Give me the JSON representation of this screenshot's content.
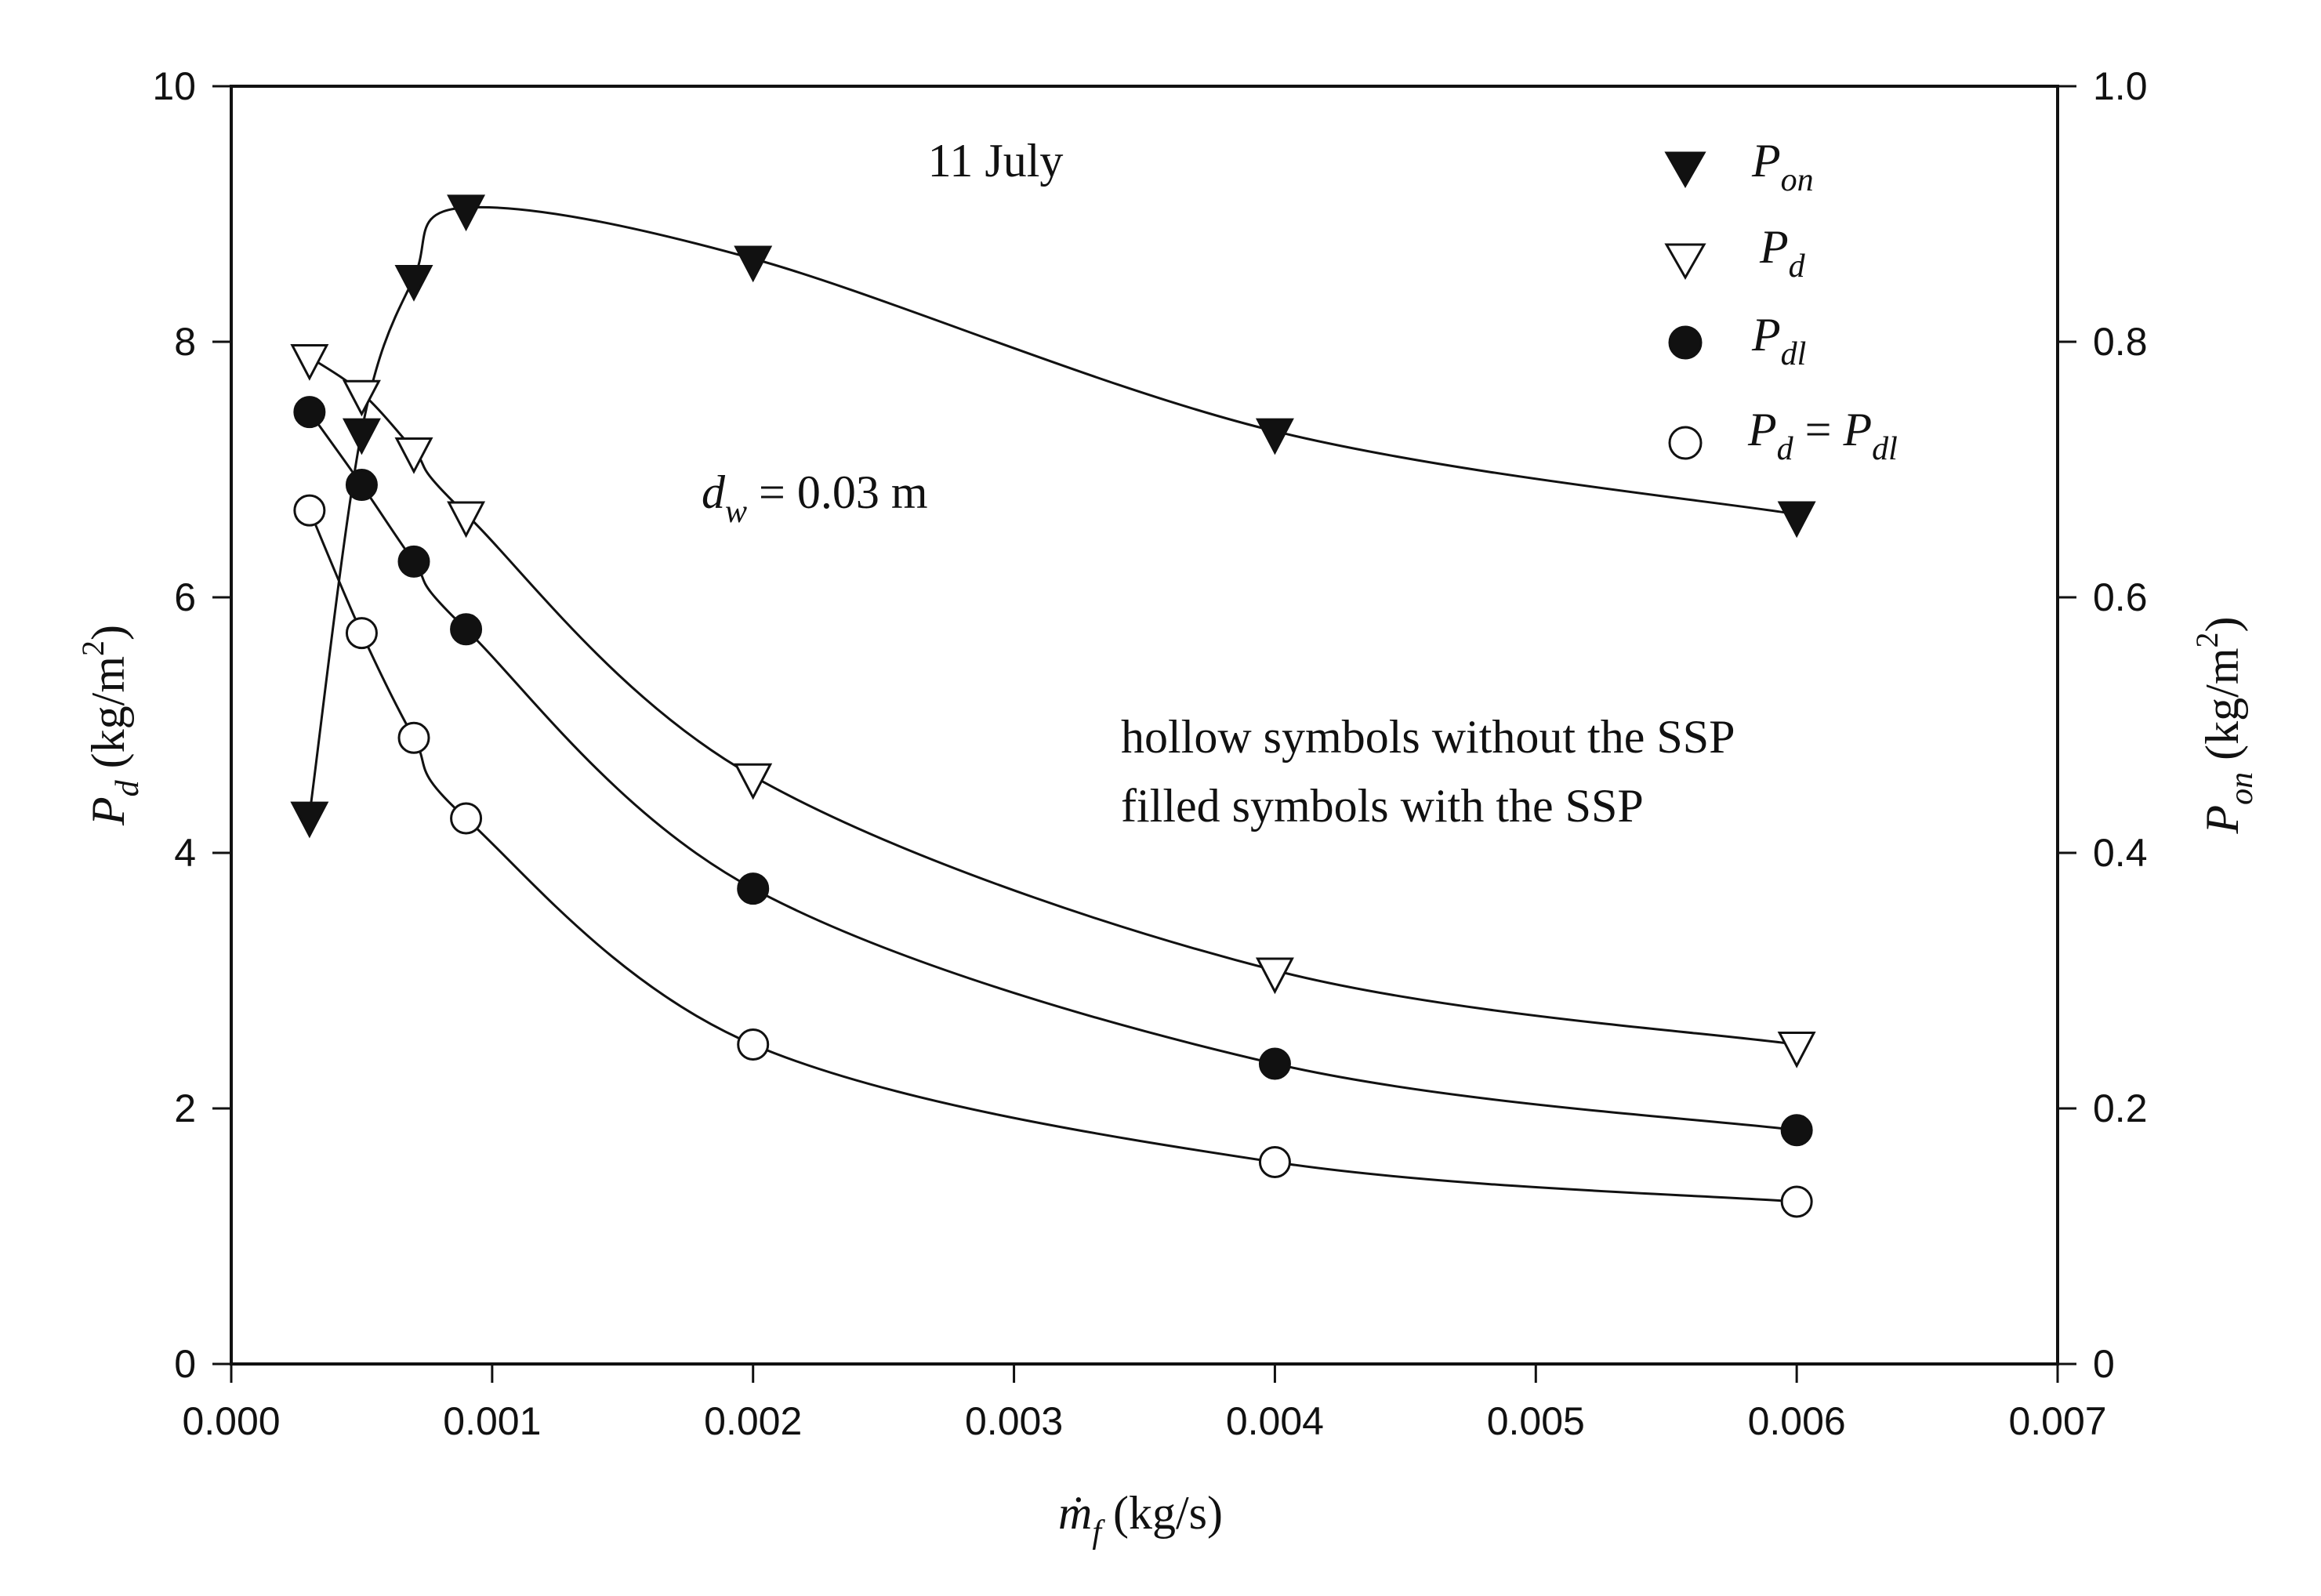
{
  "chart_data": {
    "type": "scatter",
    "annotations": {
      "date": "11 July",
      "dw_symbol": "d",
      "dw_sub": "w",
      "dw_rest": " = 0.03 m",
      "note_line1": "hollow symbols without the SSP",
      "note_line2": "filled symbols with the SSP"
    },
    "xaxis": {
      "label_symbol": "ṁ",
      "label_sub": "f",
      "label_units": " (kg/s)",
      "range": [
        0,
        0.007
      ],
      "ticks": [
        "0.000",
        "0.001",
        "0.002",
        "0.003",
        "0.004",
        "0.005",
        "0.006",
        "0.007"
      ]
    },
    "yaxis_left": {
      "label_symbol": "P",
      "label_sub": "d",
      "label_units": " (kg/m",
      "label_sup": "2",
      "label_close": ")",
      "range": [
        0,
        10
      ],
      "ticks": [
        "0",
        "2",
        "4",
        "6",
        "8",
        "10"
      ]
    },
    "yaxis_right": {
      "label_symbol": "P",
      "label_sub": "on",
      "label_units": " (kg/m",
      "label_sup": "2",
      "label_close": ")",
      "range": [
        0,
        1.0
      ],
      "ticks": [
        "0",
        "0.2",
        "0.4",
        "0.6",
        "0.8",
        "1.0"
      ]
    },
    "legend": {
      "placement": "top-right",
      "entries": [
        {
          "symbol": "filled-triangle-down",
          "main": "P",
          "sub": "on"
        },
        {
          "symbol": "hollow-triangle-down",
          "main": "P",
          "sub": "d"
        },
        {
          "symbol": "filled-circle",
          "main": "P",
          "sub": "dl"
        },
        {
          "symbol": "hollow-circle",
          "main": "P",
          "sub": "d",
          "eq": " = ",
          "main2": "P",
          "sub2": "dl"
        }
      ]
    },
    "series": [
      {
        "name": "P_on",
        "axis": "right",
        "marker": "filled-triangle-down",
        "x": [
          0.0003,
          0.0005,
          0.0007,
          0.0009,
          0.002,
          0.004,
          0.006
        ],
        "y": [
          0.43,
          0.73,
          0.85,
          0.905,
          0.865,
          0.73,
          0.665
        ]
      },
      {
        "name": "P_d",
        "axis": "left",
        "marker": "hollow-triangle-down",
        "x": [
          0.0003,
          0.0005,
          0.0007,
          0.0009,
          0.002,
          0.004,
          0.006
        ],
        "y": [
          7.88,
          7.6,
          7.15,
          6.65,
          4.6,
          3.08,
          2.5
        ]
      },
      {
        "name": "P_dl",
        "axis": "left",
        "marker": "filled-circle",
        "x": [
          0.0003,
          0.0005,
          0.0007,
          0.0009,
          0.002,
          0.004,
          0.006
        ],
        "y": [
          7.45,
          6.88,
          6.28,
          5.75,
          3.72,
          2.35,
          1.83
        ]
      },
      {
        "name": "P_d = P_dl",
        "axis": "left",
        "marker": "hollow-circle",
        "x": [
          0.0003,
          0.0005,
          0.0007,
          0.0009,
          0.002,
          0.004,
          0.006
        ],
        "y": [
          6.68,
          5.72,
          4.9,
          4.27,
          2.5,
          1.58,
          1.27
        ]
      }
    ]
  }
}
